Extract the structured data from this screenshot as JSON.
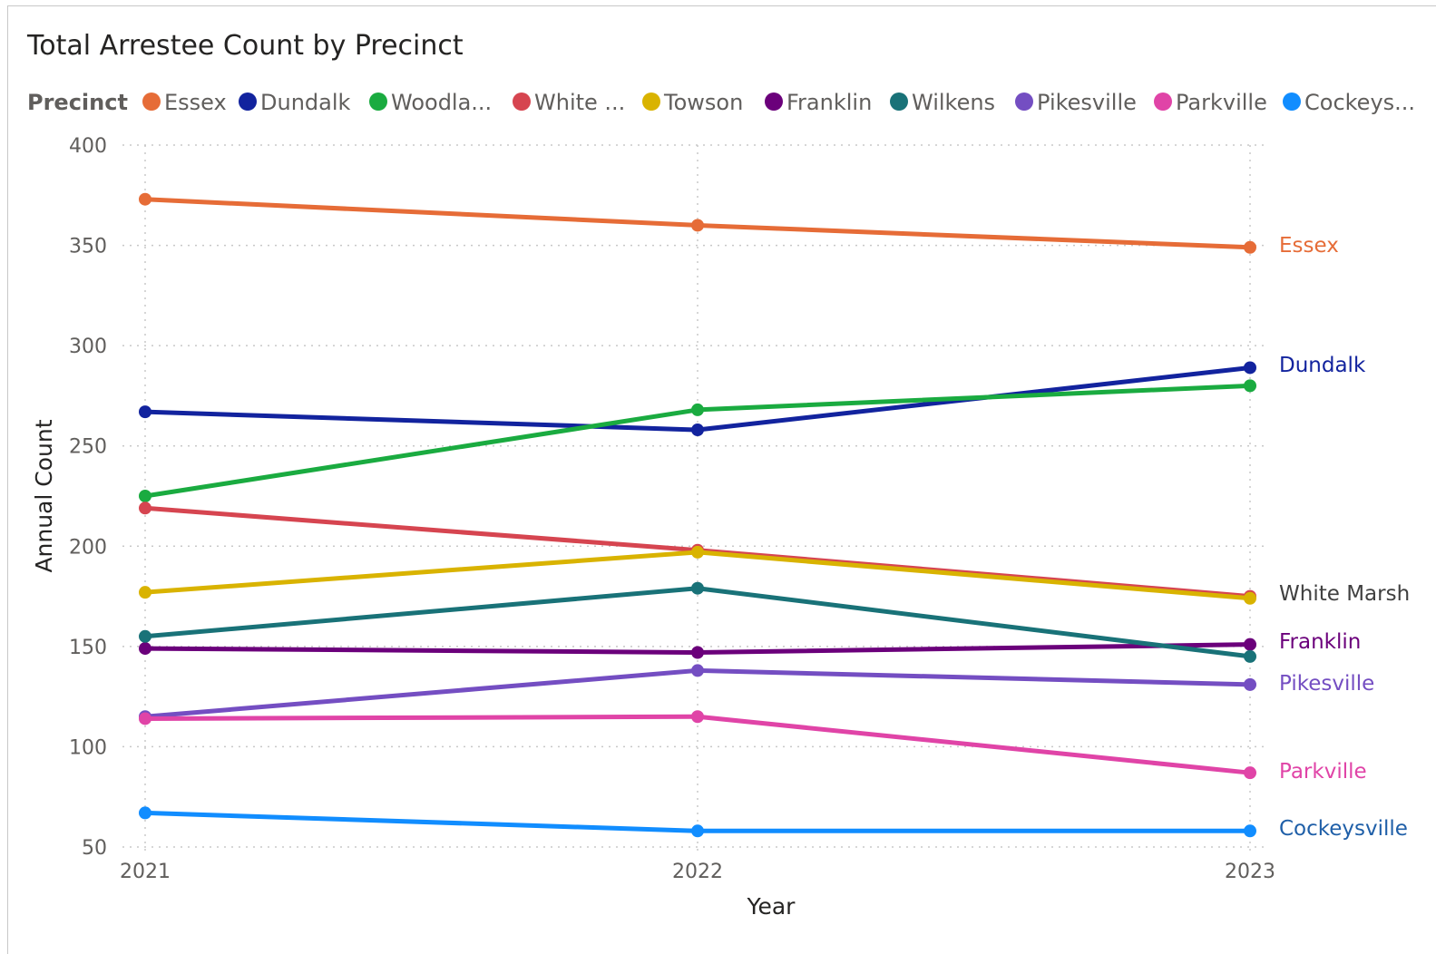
{
  "chart_data": {
    "type": "line",
    "title": "Total Arrestee Count by Precinct",
    "legend_title": "Precinct",
    "legend_position": "top-left",
    "xlabel": "Year",
    "ylabel": "Annual Count",
    "x": [
      "2021",
      "2022",
      "2023"
    ],
    "ylim": [
      50,
      400
    ],
    "yticks": [
      400,
      350,
      300,
      250,
      200,
      150,
      100,
      50
    ],
    "grid": true,
    "series": [
      {
        "name": "Essex",
        "legend_label": "Essex",
        "color": "#e66c37",
        "values": [
          373,
          360,
          349
        ],
        "end_label": "Essex",
        "end_label_color": "#e66c37"
      },
      {
        "name": "Dundalk",
        "legend_label": "Dundalk",
        "color": "#12239e",
        "values": [
          267,
          258,
          289
        ],
        "end_label": "Dundalk",
        "end_label_color": "#12239e"
      },
      {
        "name": "Woodlawn",
        "legend_label": "Woodla...",
        "color": "#1aab40",
        "values": [
          225,
          268,
          280
        ],
        "end_label": "",
        "end_label_color": "#1aab40"
      },
      {
        "name": "White Marsh",
        "legend_label": "White ...",
        "color": "#d64550",
        "values": [
          219,
          198,
          175
        ],
        "end_label": "White Marsh",
        "end_label_color": "#404040"
      },
      {
        "name": "Towson",
        "legend_label": "Towson",
        "color": "#d9b300",
        "values": [
          177,
          197,
          174
        ],
        "end_label": "",
        "end_label_color": "#d9b300"
      },
      {
        "name": "Franklin",
        "legend_label": "Franklin",
        "color": "#6b007b",
        "values": [
          149,
          147,
          151
        ],
        "end_label": "Franklin",
        "end_label_color": "#6b007b"
      },
      {
        "name": "Wilkens",
        "legend_label": "Wilkens",
        "color": "#197278",
        "values": [
          155,
          179,
          145
        ],
        "end_label": "",
        "end_label_color": "#197278"
      },
      {
        "name": "Pikesville",
        "legend_label": "Pikesville",
        "color": "#744ec2",
        "values": [
          115,
          138,
          131
        ],
        "end_label": "Pikesville",
        "end_label_color": "#744ec2"
      },
      {
        "name": "Parkville",
        "legend_label": "Parkville",
        "color": "#e044a7",
        "values": [
          114,
          115,
          87
        ],
        "end_label": "Parkville",
        "end_label_color": "#e044a7"
      },
      {
        "name": "Cockeysville",
        "legend_label": "Cockeys...",
        "color": "#118dff",
        "values": [
          67,
          58,
          58
        ],
        "end_label": "Cockeysville",
        "end_label_color": "#1f5fa8"
      }
    ]
  }
}
